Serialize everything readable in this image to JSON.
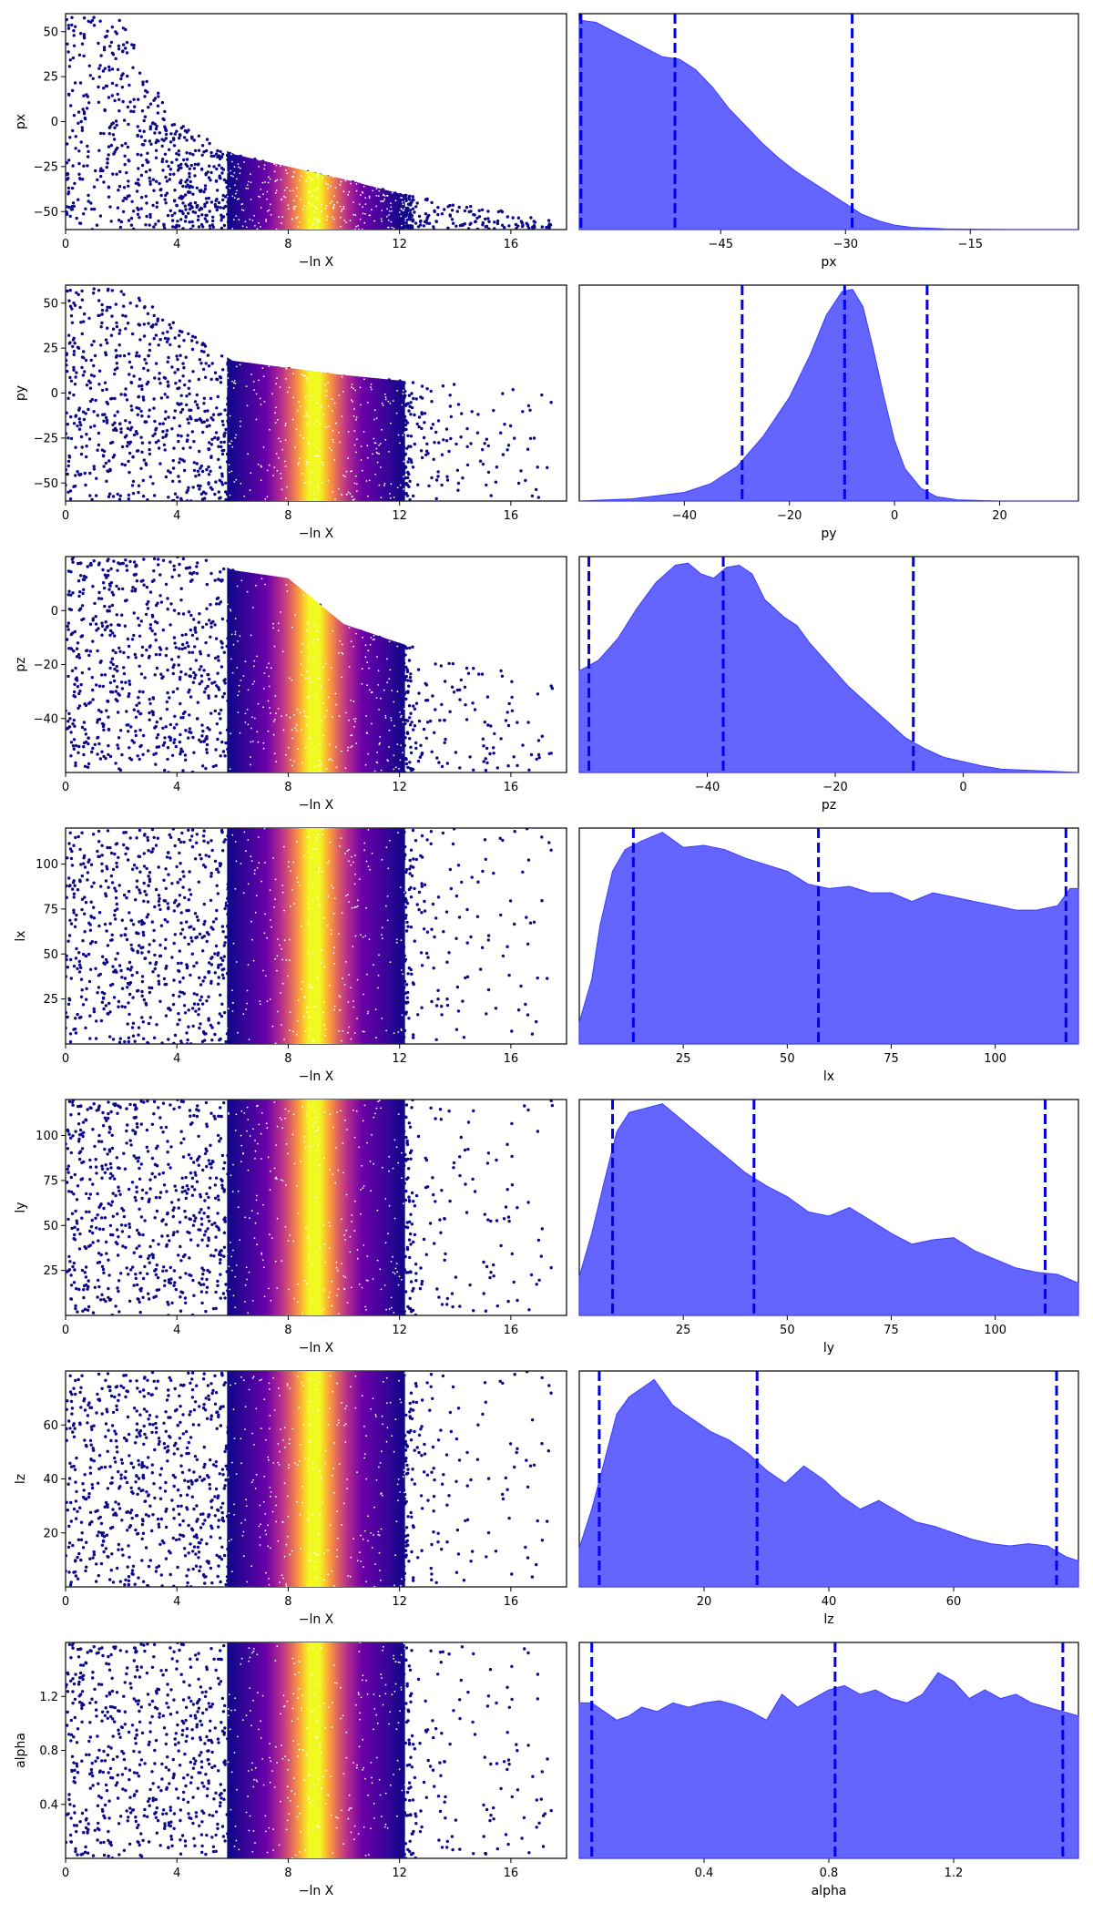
{
  "figure": {
    "series_colors": {
      "kde_fill": "#6464ff",
      "kde_line": "#3c3cff",
      "quantile_line": "#0000ee",
      "cmap_low": "#0d0887",
      "cmap_mid": "#cc4778",
      "cmap_high": "#f0f921"
    }
  },
  "chart_data": [
    {
      "type": "scatter",
      "param": "px",
      "xlabel": "−ln X",
      "ylabel": "px",
      "xlim": [
        0,
        18
      ],
      "ylim": [
        -60,
        60
      ],
      "xticks": [
        0,
        4,
        8,
        12,
        16
      ],
      "yticks": [
        -50,
        -25,
        0,
        25,
        50
      ],
      "xtick_labels": [
        "0",
        "4",
        "8",
        "12",
        "16"
      ],
      "ytick_labels": [
        "−50",
        "−25",
        "0",
        "25",
        "50"
      ],
      "envelope": [
        [
          0,
          60
        ],
        [
          2,
          58
        ],
        [
          3,
          25
        ],
        [
          4,
          0
        ],
        [
          6,
          -18
        ],
        [
          8,
          -25
        ],
        [
          10,
          -32
        ],
        [
          12,
          -40
        ],
        [
          14,
          -46
        ],
        [
          16,
          -50
        ],
        [
          17.5,
          -55
        ]
      ]
    },
    {
      "type": "area",
      "param": "px",
      "xlabel": "px",
      "xlim": [
        -62,
        -2
      ],
      "ylim": [
        0,
        1
      ],
      "xticks": [
        -45,
        -30,
        -15
      ],
      "xtick_labels": [
        "−45",
        "−30",
        "−15"
      ],
      "quantiles": [
        -61.8,
        -50.5,
        -29.2
      ],
      "density": [
        [
          -62,
          0.97
        ],
        [
          -60,
          0.96
        ],
        [
          -58,
          0.92
        ],
        [
          -56,
          0.88
        ],
        [
          -54,
          0.84
        ],
        [
          -52,
          0.8
        ],
        [
          -50,
          0.79
        ],
        [
          -48,
          0.74
        ],
        [
          -46,
          0.66
        ],
        [
          -44,
          0.56
        ],
        [
          -42,
          0.48
        ],
        [
          -40,
          0.4
        ],
        [
          -38,
          0.33
        ],
        [
          -36,
          0.27
        ],
        [
          -34,
          0.22
        ],
        [
          -32,
          0.17
        ],
        [
          -30,
          0.12
        ],
        [
          -28,
          0.07
        ],
        [
          -26,
          0.04
        ],
        [
          -24,
          0.02
        ],
        [
          -22,
          0.01
        ],
        [
          -18,
          0.003
        ],
        [
          -10,
          0
        ],
        [
          -2,
          0
        ]
      ]
    },
    {
      "type": "scatter",
      "param": "py",
      "xlabel": "−ln X",
      "ylabel": "py",
      "xlim": [
        0,
        18
      ],
      "ylim": [
        -60,
        60
      ],
      "xticks": [
        0,
        4,
        8,
        12,
        16
      ],
      "yticks": [
        -50,
        -25,
        0,
        25,
        50
      ],
      "xtick_labels": [
        "0",
        "4",
        "8",
        "12",
        "16"
      ],
      "ytick_labels": [
        "−50",
        "−25",
        "0",
        "25",
        "50"
      ],
      "envelope": [
        [
          0,
          60
        ],
        [
          2,
          58
        ],
        [
          3,
          50
        ],
        [
          4,
          38
        ],
        [
          6,
          18
        ],
        [
          8,
          14
        ],
        [
          10,
          10
        ],
        [
          12,
          7
        ],
        [
          14,
          5
        ],
        [
          16,
          3
        ],
        [
          17.5,
          1
        ]
      ]
    },
    {
      "type": "area",
      "param": "py",
      "xlabel": "py",
      "xlim": [
        -60,
        35
      ],
      "ylim": [
        0,
        1
      ],
      "xticks": [
        -40,
        -20,
        0,
        20
      ],
      "xtick_labels": [
        "−40",
        "−20",
        "0",
        "20"
      ],
      "quantiles": [
        -29,
        -9.5,
        6.2
      ],
      "density": [
        [
          -60,
          0
        ],
        [
          -50,
          0.01
        ],
        [
          -40,
          0.04
        ],
        [
          -35,
          0.08
        ],
        [
          -30,
          0.16
        ],
        [
          -25,
          0.3
        ],
        [
          -20,
          0.48
        ],
        [
          -16,
          0.68
        ],
        [
          -13,
          0.86
        ],
        [
          -10,
          0.97
        ],
        [
          -8,
          0.98
        ],
        [
          -6,
          0.9
        ],
        [
          -4,
          0.7
        ],
        [
          -2,
          0.48
        ],
        [
          0,
          0.28
        ],
        [
          2,
          0.15
        ],
        [
          5,
          0.06
        ],
        [
          8,
          0.02
        ],
        [
          12,
          0.005
        ],
        [
          20,
          0
        ],
        [
          35,
          0
        ]
      ]
    },
    {
      "type": "scatter",
      "param": "pz",
      "xlabel": "−ln X",
      "ylabel": "pz",
      "xlim": [
        0,
        18
      ],
      "ylim": [
        -60,
        20
      ],
      "xticks": [
        0,
        4,
        8,
        12,
        16
      ],
      "yticks": [
        -40,
        -20,
        0
      ],
      "xtick_labels": [
        "0",
        "4",
        "8",
        "12",
        "16"
      ],
      "ytick_labels": [
        "−40",
        "−20",
        "0"
      ],
      "envelope": [
        [
          0,
          20
        ],
        [
          3,
          20
        ],
        [
          5,
          20
        ],
        [
          6,
          15
        ],
        [
          8,
          12
        ],
        [
          10,
          -5
        ],
        [
          12,
          -12
        ],
        [
          14,
          -18
        ],
        [
          16,
          -22
        ],
        [
          17.5,
          -28
        ]
      ]
    },
    {
      "type": "area",
      "param": "pz",
      "xlabel": "pz",
      "xlim": [
        -60,
        18
      ],
      "ylim": [
        0,
        1
      ],
      "xticks": [
        -40,
        -20,
        0
      ],
      "xtick_labels": [
        "−40",
        "−20",
        "0"
      ],
      "quantiles": [
        -58.5,
        -37.5,
        -7.8
      ],
      "density": [
        [
          -60,
          0.47
        ],
        [
          -57,
          0.52
        ],
        [
          -54,
          0.62
        ],
        [
          -51,
          0.76
        ],
        [
          -48,
          0.88
        ],
        [
          -45,
          0.96
        ],
        [
          -43,
          0.97
        ],
        [
          -41,
          0.92
        ],
        [
          -39,
          0.9
        ],
        [
          -37,
          0.95
        ],
        [
          -35,
          0.96
        ],
        [
          -33,
          0.92
        ],
        [
          -31,
          0.8
        ],
        [
          -28,
          0.72
        ],
        [
          -26,
          0.68
        ],
        [
          -24,
          0.6
        ],
        [
          -21,
          0.5
        ],
        [
          -18,
          0.4
        ],
        [
          -15,
          0.32
        ],
        [
          -12,
          0.24
        ],
        [
          -9,
          0.16
        ],
        [
          -6,
          0.11
        ],
        [
          -3,
          0.07
        ],
        [
          0,
          0.05
        ],
        [
          3,
          0.03
        ],
        [
          6,
          0.015
        ],
        [
          12,
          0.008
        ],
        [
          18,
          0
        ]
      ]
    },
    {
      "type": "scatter",
      "param": "lx",
      "xlabel": "−ln X",
      "ylabel": "lx",
      "xlim": [
        0,
        18
      ],
      "ylim": [
        0,
        120
      ],
      "xticks": [
        0,
        4,
        8,
        12,
        16
      ],
      "yticks": [
        25,
        50,
        75,
        100
      ],
      "xtick_labels": [
        "0",
        "4",
        "8",
        "12",
        "16"
      ],
      "ytick_labels": [
        "25",
        "50",
        "75",
        "100"
      ],
      "envelope": [
        [
          0,
          120
        ],
        [
          17.5,
          120
        ]
      ]
    },
    {
      "type": "area",
      "param": "lx",
      "xlabel": "lx",
      "xlim": [
        0,
        120
      ],
      "ylim": [
        0,
        1
      ],
      "xticks": [
        25,
        50,
        75,
        100
      ],
      "xtick_labels": [
        "25",
        "50",
        "75",
        "100"
      ],
      "quantiles": [
        13,
        57.5,
        117
      ],
      "density": [
        [
          0,
          0.1
        ],
        [
          3,
          0.3
        ],
        [
          5,
          0.55
        ],
        [
          8,
          0.8
        ],
        [
          11,
          0.9
        ],
        [
          15,
          0.94
        ],
        [
          20,
          0.98
        ],
        [
          25,
          0.91
        ],
        [
          30,
          0.92
        ],
        [
          35,
          0.9
        ],
        [
          40,
          0.86
        ],
        [
          45,
          0.83
        ],
        [
          50,
          0.8
        ],
        [
          55,
          0.74
        ],
        [
          60,
          0.72
        ],
        [
          65,
          0.73
        ],
        [
          70,
          0.7
        ],
        [
          75,
          0.7
        ],
        [
          80,
          0.66
        ],
        [
          85,
          0.7
        ],
        [
          90,
          0.68
        ],
        [
          95,
          0.66
        ],
        [
          100,
          0.64
        ],
        [
          105,
          0.62
        ],
        [
          110,
          0.62
        ],
        [
          115,
          0.64
        ],
        [
          118,
          0.72
        ],
        [
          120,
          0.72
        ]
      ]
    },
    {
      "type": "scatter",
      "param": "ly",
      "xlabel": "−ln X",
      "ylabel": "ly",
      "xlim": [
        0,
        18
      ],
      "ylim": [
        0,
        120
      ],
      "xticks": [
        0,
        4,
        8,
        12,
        16
      ],
      "yticks": [
        25,
        50,
        75,
        100
      ],
      "xtick_labels": [
        "0",
        "4",
        "8",
        "12",
        "16"
      ],
      "ytick_labels": [
        "25",
        "50",
        "75",
        "100"
      ],
      "envelope": [
        [
          0,
          120
        ],
        [
          17.5,
          120
        ]
      ]
    },
    {
      "type": "area",
      "param": "ly",
      "xlabel": "ly",
      "xlim": [
        0,
        120
      ],
      "ylim": [
        0,
        1
      ],
      "xticks": [
        25,
        50,
        75,
        100
      ],
      "xtick_labels": [
        "25",
        "50",
        "75",
        "100"
      ],
      "quantiles": [
        8,
        42,
        112
      ],
      "density": [
        [
          0,
          0.18
        ],
        [
          3,
          0.38
        ],
        [
          6,
          0.62
        ],
        [
          9,
          0.85
        ],
        [
          12,
          0.94
        ],
        [
          16,
          0.96
        ],
        [
          20,
          0.98
        ],
        [
          25,
          0.9
        ],
        [
          30,
          0.82
        ],
        [
          35,
          0.74
        ],
        [
          40,
          0.66
        ],
        [
          45,
          0.6
        ],
        [
          50,
          0.55
        ],
        [
          55,
          0.48
        ],
        [
          60,
          0.46
        ],
        [
          65,
          0.5
        ],
        [
          70,
          0.44
        ],
        [
          75,
          0.38
        ],
        [
          80,
          0.33
        ],
        [
          85,
          0.35
        ],
        [
          90,
          0.36
        ],
        [
          95,
          0.3
        ],
        [
          100,
          0.26
        ],
        [
          105,
          0.22
        ],
        [
          110,
          0.2
        ],
        [
          115,
          0.19
        ],
        [
          120,
          0.15
        ]
      ]
    },
    {
      "type": "scatter",
      "param": "lz",
      "xlabel": "−ln X",
      "ylabel": "lz",
      "xlim": [
        0,
        18
      ],
      "ylim": [
        0,
        80
      ],
      "xticks": [
        0,
        4,
        8,
        12,
        16
      ],
      "yticks": [
        20,
        40,
        60
      ],
      "xtick_labels": [
        "0",
        "4",
        "8",
        "12",
        "16"
      ],
      "ytick_labels": [
        "20",
        "40",
        "60"
      ],
      "envelope": [
        [
          0,
          80
        ],
        [
          17.5,
          80
        ]
      ]
    },
    {
      "type": "area",
      "param": "lz",
      "xlabel": "lz",
      "xlim": [
        0,
        80
      ],
      "ylim": [
        0,
        1
      ],
      "xticks": [
        20,
        40,
        60
      ],
      "xtick_labels": [
        "20",
        "40",
        "60"
      ],
      "quantiles": [
        3.2,
        28.5,
        76.5
      ],
      "density": [
        [
          0,
          0.18
        ],
        [
          2,
          0.36
        ],
        [
          4,
          0.58
        ],
        [
          6,
          0.8
        ],
        [
          8,
          0.88
        ],
        [
          10,
          0.92
        ],
        [
          12,
          0.96
        ],
        [
          15,
          0.84
        ],
        [
          18,
          0.78
        ],
        [
          21,
          0.72
        ],
        [
          24,
          0.68
        ],
        [
          27,
          0.62
        ],
        [
          30,
          0.54
        ],
        [
          33,
          0.48
        ],
        [
          36,
          0.56
        ],
        [
          39,
          0.5
        ],
        [
          42,
          0.42
        ],
        [
          45,
          0.36
        ],
        [
          48,
          0.4
        ],
        [
          51,
          0.35
        ],
        [
          54,
          0.3
        ],
        [
          57,
          0.28
        ],
        [
          60,
          0.25
        ],
        [
          63,
          0.22
        ],
        [
          66,
          0.2
        ],
        [
          69,
          0.19
        ],
        [
          72,
          0.2
        ],
        [
          75,
          0.19
        ],
        [
          78,
          0.14
        ],
        [
          80,
          0.12
        ]
      ]
    },
    {
      "type": "scatter",
      "param": "alpha",
      "xlabel": "−ln X",
      "ylabel": "alpha",
      "xlim": [
        0,
        18
      ],
      "ylim": [
        0,
        1.6
      ],
      "xticks": [
        0,
        4,
        8,
        12,
        16
      ],
      "yticks": [
        0.4,
        0.8,
        1.2
      ],
      "xtick_labels": [
        "0",
        "4",
        "8",
        "12",
        "16"
      ],
      "ytick_labels": [
        "0.4",
        "0.8",
        "1.2"
      ],
      "envelope": [
        [
          0,
          1.6
        ],
        [
          17.5,
          1.6
        ]
      ]
    },
    {
      "type": "area",
      "param": "alpha",
      "xlabel": "alpha",
      "xlim": [
        0,
        1.6
      ],
      "ylim": [
        0,
        1
      ],
      "xticks": [
        0.4,
        0.8,
        1.2
      ],
      "xtick_labels": [
        "0.4",
        "0.8",
        "1.2"
      ],
      "quantiles": [
        0.04,
        0.82,
        1.55
      ],
      "density": [
        [
          0,
          0.72
        ],
        [
          0.04,
          0.72
        ],
        [
          0.08,
          0.68
        ],
        [
          0.12,
          0.64
        ],
        [
          0.16,
          0.66
        ],
        [
          0.2,
          0.7
        ],
        [
          0.25,
          0.68
        ],
        [
          0.3,
          0.72
        ],
        [
          0.35,
          0.7
        ],
        [
          0.4,
          0.72
        ],
        [
          0.45,
          0.73
        ],
        [
          0.5,
          0.71
        ],
        [
          0.55,
          0.68
        ],
        [
          0.6,
          0.64
        ],
        [
          0.65,
          0.76
        ],
        [
          0.7,
          0.7
        ],
        [
          0.75,
          0.74
        ],
        [
          0.8,
          0.78
        ],
        [
          0.85,
          0.8
        ],
        [
          0.9,
          0.76
        ],
        [
          0.95,
          0.78
        ],
        [
          1.0,
          0.74
        ],
        [
          1.05,
          0.72
        ],
        [
          1.1,
          0.76
        ],
        [
          1.15,
          0.86
        ],
        [
          1.2,
          0.82
        ],
        [
          1.25,
          0.74
        ],
        [
          1.3,
          0.78
        ],
        [
          1.35,
          0.74
        ],
        [
          1.4,
          0.76
        ],
        [
          1.45,
          0.72
        ],
        [
          1.5,
          0.7
        ],
        [
          1.55,
          0.68
        ],
        [
          1.6,
          0.66
        ]
      ]
    }
  ]
}
